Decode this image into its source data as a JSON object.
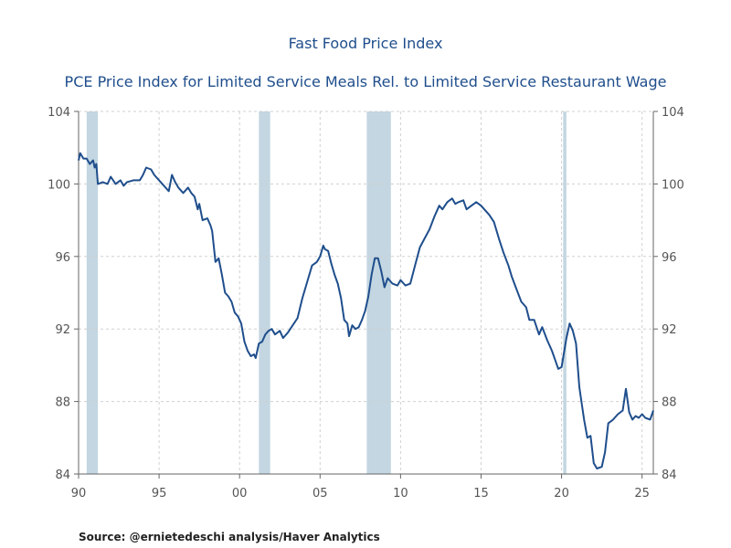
{
  "chart_data": {
    "type": "line",
    "title": "Fast Food Price Index",
    "subtitle": "PCE Price Index for Limited Service Meals Rel. to Limited Service Restaurant Wage",
    "xlabel": "",
    "ylabel": "",
    "x_tick_values": [
      1990,
      1995,
      2000,
      2005,
      2010,
      2015,
      2020,
      2025
    ],
    "x_tick_labels": [
      "90",
      "95",
      "00",
      "05",
      "10",
      "15",
      "20",
      "25"
    ],
    "xlim": [
      1990,
      2025.7
    ],
    "ylim": [
      84,
      104
    ],
    "y_ticks": [
      84,
      88,
      92,
      96,
      100,
      104
    ],
    "grid": true,
    "recessions": [
      {
        "start": 1990.5,
        "end": 1991.2
      },
      {
        "start": 2001.2,
        "end": 2001.9
      },
      {
        "start": 2007.9,
        "end": 2009.4
      },
      {
        "start": 2020.1,
        "end": 2020.3
      }
    ],
    "series": [
      {
        "name": "Fast Food Price Index",
        "color": "#1f4e8c",
        "points": [
          [
            1990.0,
            101.3
          ],
          [
            1990.1,
            101.7
          ],
          [
            1990.3,
            101.4
          ],
          [
            1990.5,
            101.4
          ],
          [
            1990.7,
            101.1
          ],
          [
            1990.9,
            101.3
          ],
          [
            1991.0,
            100.9
          ],
          [
            1991.1,
            101.1
          ],
          [
            1991.2,
            100.0
          ],
          [
            1991.5,
            100.1
          ],
          [
            1991.8,
            100.0
          ],
          [
            1992.0,
            100.4
          ],
          [
            1992.3,
            100.0
          ],
          [
            1992.6,
            100.2
          ],
          [
            1992.8,
            99.9
          ],
          [
            1993.0,
            100.1
          ],
          [
            1993.4,
            100.2
          ],
          [
            1993.8,
            100.2
          ],
          [
            1994.0,
            100.5
          ],
          [
            1994.2,
            100.9
          ],
          [
            1994.5,
            100.8
          ],
          [
            1994.7,
            100.5
          ],
          [
            1995.0,
            100.2
          ],
          [
            1995.3,
            99.9
          ],
          [
            1995.6,
            99.6
          ],
          [
            1995.8,
            100.5
          ],
          [
            1996.0,
            100.1
          ],
          [
            1996.2,
            99.8
          ],
          [
            1996.5,
            99.5
          ],
          [
            1996.8,
            99.8
          ],
          [
            1997.0,
            99.5
          ],
          [
            1997.2,
            99.3
          ],
          [
            1997.4,
            98.6
          ],
          [
            1997.5,
            98.9
          ],
          [
            1997.7,
            98.0
          ],
          [
            1998.0,
            98.1
          ],
          [
            1998.2,
            97.7
          ],
          [
            1998.3,
            97.4
          ],
          [
            1998.5,
            95.7
          ],
          [
            1998.7,
            95.9
          ],
          [
            1998.9,
            95.0
          ],
          [
            1999.1,
            94.0
          ],
          [
            1999.3,
            93.8
          ],
          [
            1999.5,
            93.5
          ],
          [
            1999.7,
            92.9
          ],
          [
            1999.9,
            92.7
          ],
          [
            2000.1,
            92.3
          ],
          [
            2000.3,
            91.3
          ],
          [
            2000.5,
            90.8
          ],
          [
            2000.7,
            90.5
          ],
          [
            2000.9,
            90.6
          ],
          [
            2001.0,
            90.4
          ],
          [
            2001.2,
            91.2
          ],
          [
            2001.4,
            91.3
          ],
          [
            2001.6,
            91.7
          ],
          [
            2001.8,
            91.9
          ],
          [
            2002.0,
            92.0
          ],
          [
            2002.2,
            91.7
          ],
          [
            2002.5,
            91.9
          ],
          [
            2002.7,
            91.5
          ],
          [
            2003.0,
            91.8
          ],
          [
            2003.3,
            92.2
          ],
          [
            2003.6,
            92.6
          ],
          [
            2003.9,
            93.7
          ],
          [
            2004.2,
            94.6
          ],
          [
            2004.5,
            95.5
          ],
          [
            2004.8,
            95.7
          ],
          [
            2005.0,
            96.0
          ],
          [
            2005.2,
            96.6
          ],
          [
            2005.3,
            96.4
          ],
          [
            2005.5,
            96.3
          ],
          [
            2005.7,
            95.6
          ],
          [
            2005.9,
            95.0
          ],
          [
            2006.1,
            94.5
          ],
          [
            2006.3,
            93.7
          ],
          [
            2006.5,
            92.5
          ],
          [
            2006.7,
            92.3
          ],
          [
            2006.8,
            91.6
          ],
          [
            2007.0,
            92.2
          ],
          [
            2007.2,
            92.0
          ],
          [
            2007.4,
            92.1
          ],
          [
            2007.6,
            92.5
          ],
          [
            2007.8,
            93.0
          ],
          [
            2008.0,
            93.8
          ],
          [
            2008.2,
            95.0
          ],
          [
            2008.4,
            95.9
          ],
          [
            2008.6,
            95.9
          ],
          [
            2008.8,
            95.2
          ],
          [
            2009.0,
            94.3
          ],
          [
            2009.2,
            94.8
          ],
          [
            2009.5,
            94.5
          ],
          [
            2009.8,
            94.4
          ],
          [
            2010.0,
            94.7
          ],
          [
            2010.3,
            94.4
          ],
          [
            2010.6,
            94.5
          ],
          [
            2010.9,
            95.5
          ],
          [
            2011.2,
            96.5
          ],
          [
            2011.5,
            97.0
          ],
          [
            2011.8,
            97.5
          ],
          [
            2012.1,
            98.2
          ],
          [
            2012.4,
            98.8
          ],
          [
            2012.6,
            98.6
          ],
          [
            2012.9,
            99.0
          ],
          [
            2013.2,
            99.2
          ],
          [
            2013.4,
            98.9
          ],
          [
            2013.6,
            99.0
          ],
          [
            2013.9,
            99.1
          ],
          [
            2014.1,
            98.6
          ],
          [
            2014.4,
            98.8
          ],
          [
            2014.7,
            99.0
          ],
          [
            2015.0,
            98.8
          ],
          [
            2015.2,
            98.6
          ],
          [
            2015.5,
            98.3
          ],
          [
            2015.8,
            97.9
          ],
          [
            2016.1,
            97.0
          ],
          [
            2016.4,
            96.2
          ],
          [
            2016.7,
            95.5
          ],
          [
            2016.9,
            94.9
          ],
          [
            2017.2,
            94.2
          ],
          [
            2017.5,
            93.5
          ],
          [
            2017.8,
            93.2
          ],
          [
            2018.0,
            92.5
          ],
          [
            2018.3,
            92.5
          ],
          [
            2018.6,
            91.7
          ],
          [
            2018.8,
            92.1
          ],
          [
            2019.1,
            91.4
          ],
          [
            2019.4,
            90.8
          ],
          [
            2019.6,
            90.3
          ],
          [
            2019.8,
            89.8
          ],
          [
            2020.0,
            89.9
          ],
          [
            2020.3,
            91.5
          ],
          [
            2020.5,
            92.3
          ],
          [
            2020.7,
            91.9
          ],
          [
            2020.9,
            91.2
          ],
          [
            2021.1,
            88.8
          ],
          [
            2021.4,
            87.0
          ],
          [
            2021.6,
            86.0
          ],
          [
            2021.8,
            86.1
          ],
          [
            2022.0,
            84.6
          ],
          [
            2022.2,
            84.3
          ],
          [
            2022.5,
            84.4
          ],
          [
            2022.7,
            85.2
          ],
          [
            2022.9,
            86.8
          ],
          [
            2023.2,
            87.0
          ],
          [
            2023.5,
            87.3
          ],
          [
            2023.8,
            87.5
          ],
          [
            2024.0,
            88.7
          ],
          [
            2024.2,
            87.4
          ],
          [
            2024.4,
            87.0
          ],
          [
            2024.6,
            87.2
          ],
          [
            2024.8,
            87.1
          ],
          [
            2025.0,
            87.3
          ],
          [
            2025.2,
            87.1
          ],
          [
            2025.5,
            87.0
          ],
          [
            2025.7,
            87.5
          ]
        ]
      }
    ]
  },
  "source_text": "Source:  @ernietedeschi analysis/Haver Analytics"
}
